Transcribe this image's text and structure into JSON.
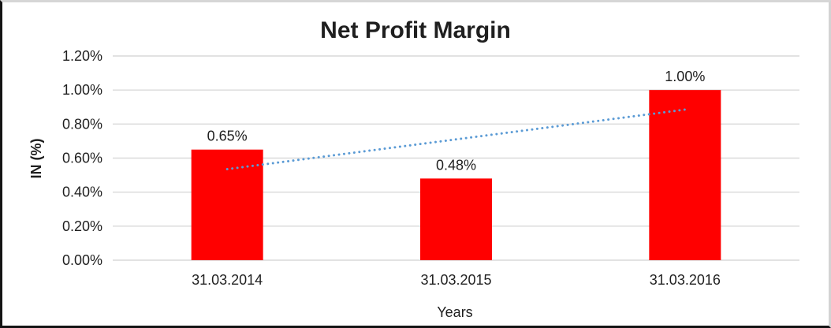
{
  "chart_data": {
    "type": "bar",
    "title": "Net Profit Margin",
    "xlabel": "Years",
    "ylabel": "IN (%)",
    "categories": [
      "31.03.2014",
      "31.03.2015",
      "31.03.2016"
    ],
    "values": [
      0.65,
      0.48,
      1.0
    ],
    "value_labels": [
      "0.65%",
      "0.48%",
      "1.00%"
    ],
    "y_ticks": [
      "0.00%",
      "0.20%",
      "0.40%",
      "0.60%",
      "0.80%",
      "1.00%",
      "1.20%"
    ],
    "ylim": [
      0,
      1.2
    ],
    "grid": true,
    "legend": "none",
    "bar_color": "#FF0000",
    "gridline_color": "#D9D9D9",
    "trendline": {
      "type": "linear",
      "style": "dotted",
      "color": "#5B9BD5",
      "start_value": 0.535,
      "end_value": 0.885
    }
  }
}
